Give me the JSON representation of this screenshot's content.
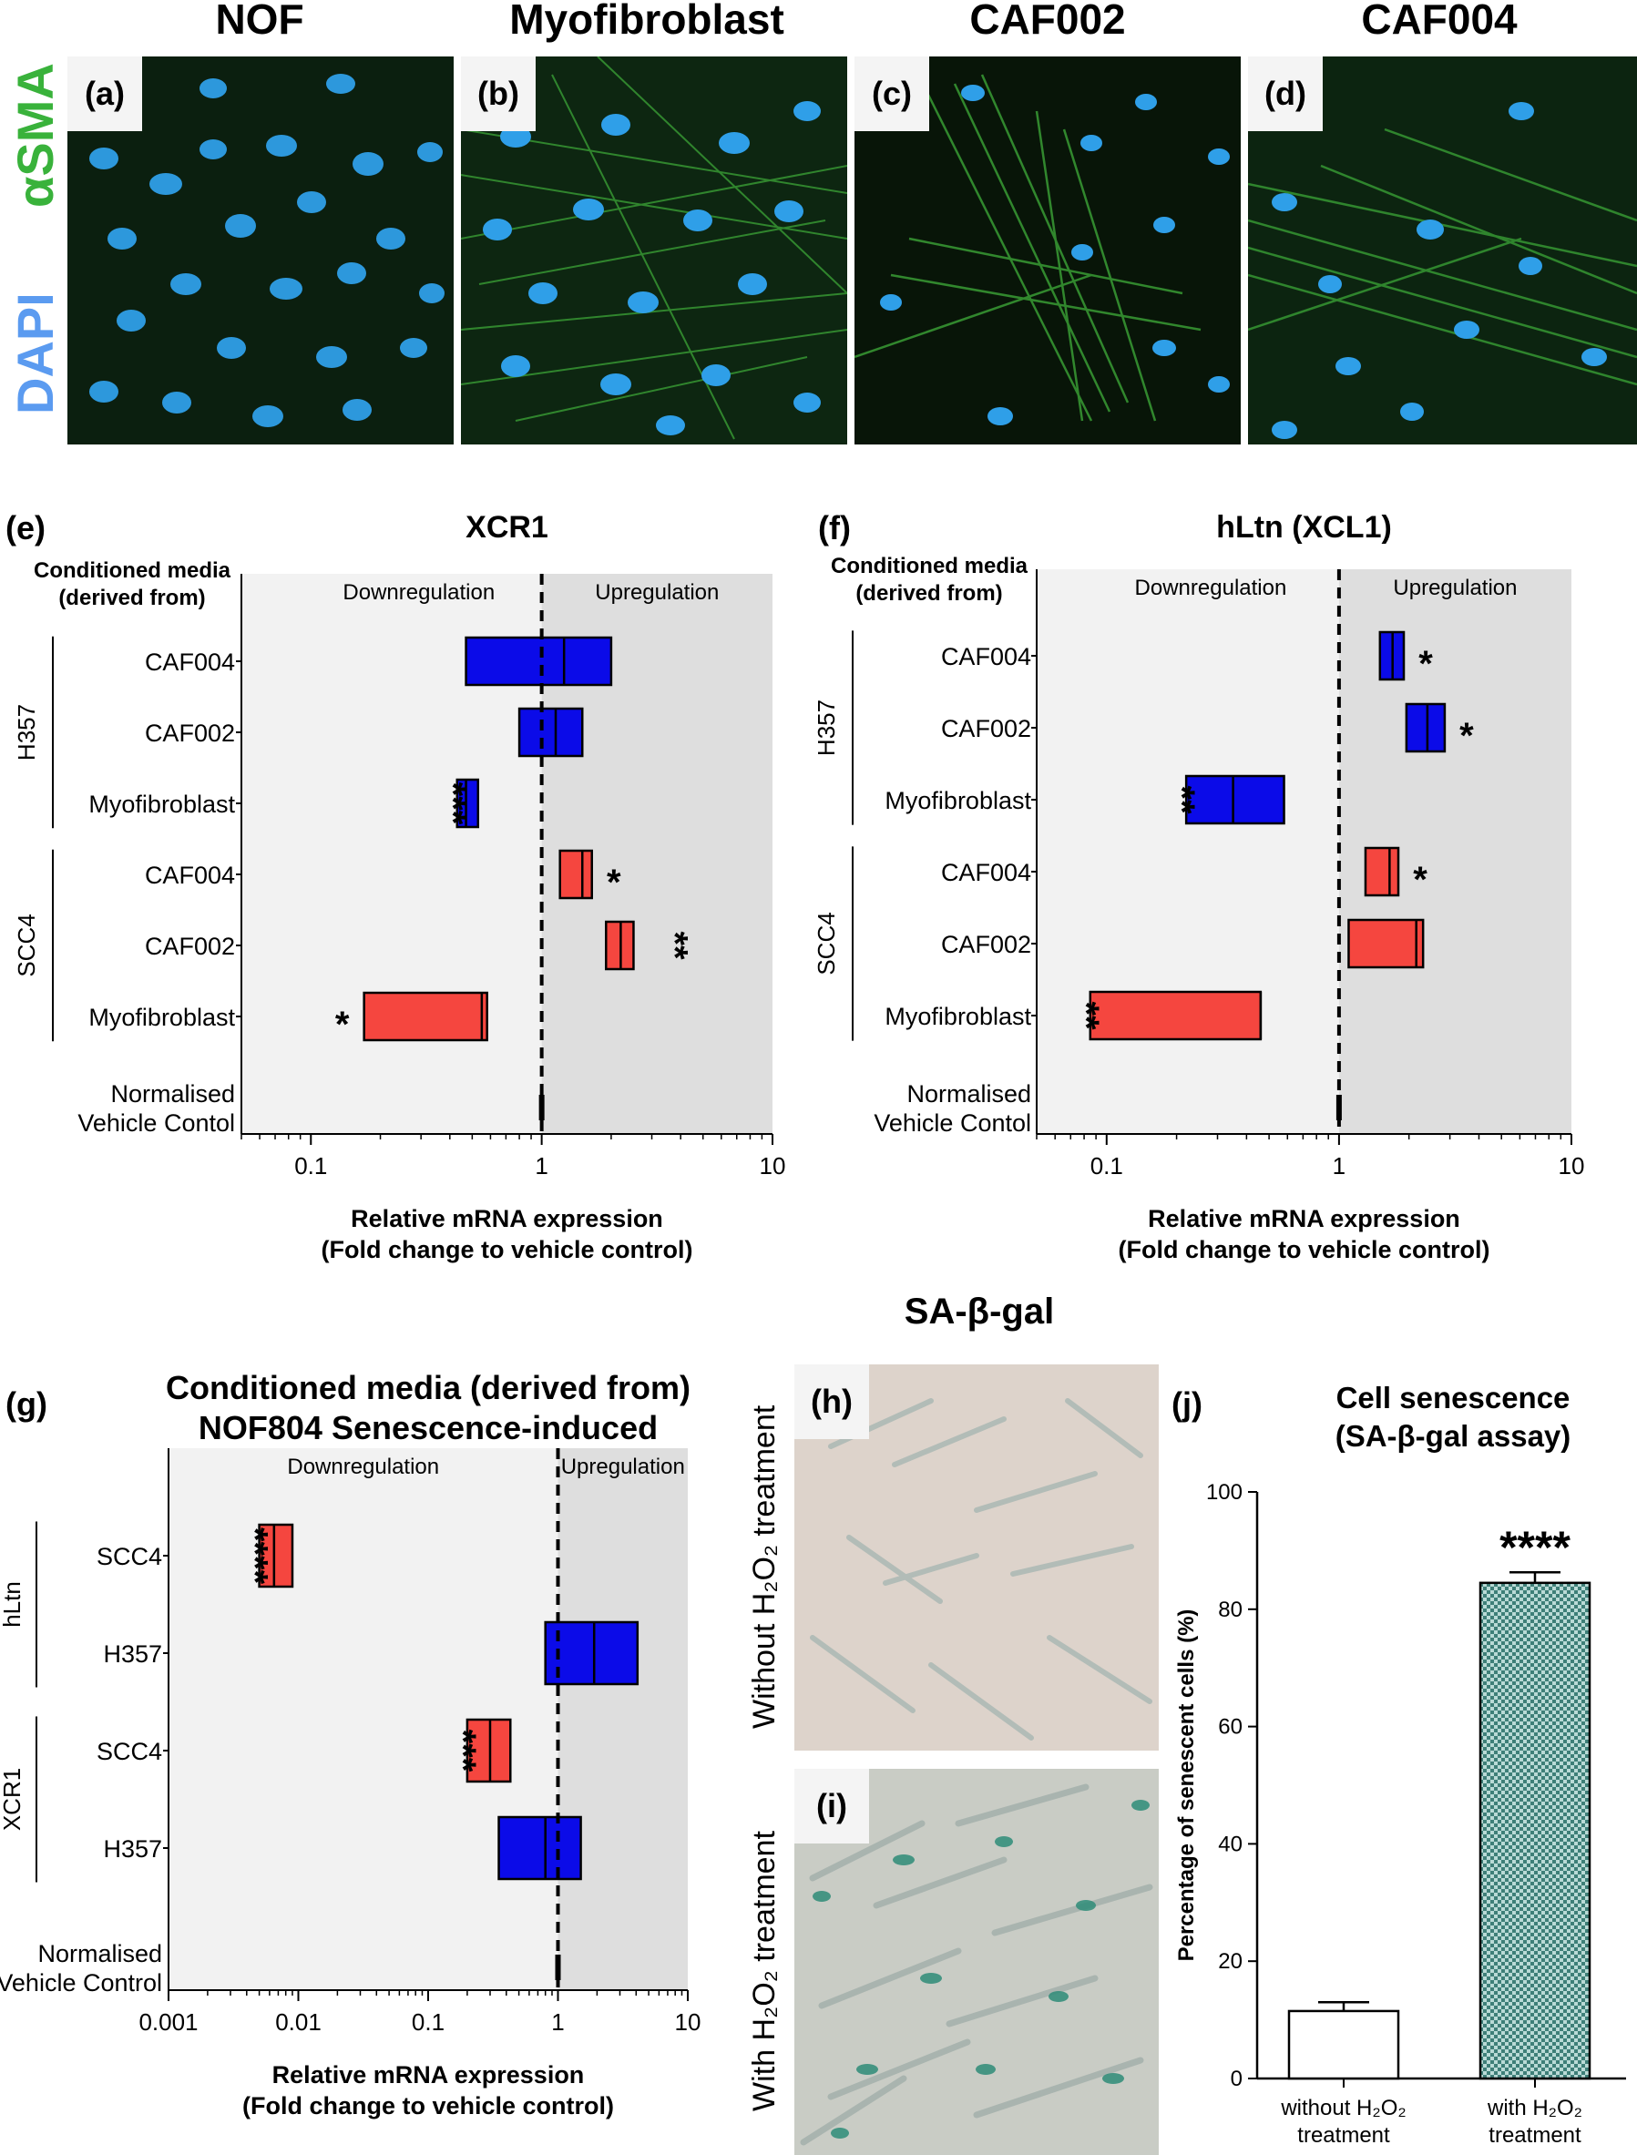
{
  "micro_panel": {
    "column_headers": [
      "NOF",
      "Myofibroblast",
      "CAF002",
      "CAF004"
    ],
    "panel_letters": [
      "(a)",
      "(b)",
      "(c)",
      "(d)"
    ],
    "stain_label_green": "αSMA",
    "stain_label_blue": "DAPI",
    "colors": {
      "actin": "#3fae3a",
      "nucleus": "#2f9fe8",
      "background": "#0c1a0e"
    }
  },
  "common": {
    "downregulation": "Downregulation",
    "upregulation": "Upregulation",
    "cm_header_line1": "Conditioned media",
    "cm_header_line2": "(derived from)",
    "xlabel_line1": "Relative mRNA expression",
    "xlabel_line2": "(Fold change to vehicle control)",
    "colors": {
      "h357": "#0b0be8",
      "scc4": "#f5463f",
      "upregulation_shade": "#dedede",
      "downregulation_shade": "#f2f2f2"
    }
  },
  "chart_data": [
    {
      "panel": "(e)",
      "type": "floating-bar",
      "title": "XCR1",
      "x_scale": "log",
      "xlim": [
        0.05,
        10
      ],
      "x_ticks": [
        "0.1",
        "1",
        "10"
      ],
      "groups": [
        {
          "name": "H357",
          "rows": [
            {
              "label": "CAF004",
              "min": 0.47,
              "mean": 1.25,
              "max": 2.0,
              "sig": ""
            },
            {
              "label": "CAF002",
              "min": 0.8,
              "mean": 1.15,
              "max": 1.5,
              "sig": ""
            },
            {
              "label": "Myofibroblast",
              "min": 0.43,
              "mean": 0.47,
              "max": 0.53,
              "sig": "***"
            }
          ]
        },
        {
          "name": "SCC4",
          "rows": [
            {
              "label": "CAF004",
              "min": 1.2,
              "mean": 1.5,
              "max": 1.65,
              "sig": "*"
            },
            {
              "label": "CAF002",
              "min": 1.9,
              "mean": 2.2,
              "max": 2.5,
              "sig": "**"
            },
            {
              "label": "Myofibroblast",
              "min": 0.17,
              "mean": 0.55,
              "max": 0.58,
              "sig": "*"
            }
          ]
        }
      ],
      "control_label_line1": "Normalised",
      "control_label_line2": "Vehicle Contol"
    },
    {
      "panel": "(f)",
      "type": "floating-bar",
      "title": "hLtn (XCL1)",
      "x_scale": "log",
      "xlim": [
        0.05,
        10
      ],
      "x_ticks": [
        "0.1",
        "1",
        "10"
      ],
      "groups": [
        {
          "name": "H357",
          "rows": [
            {
              "label": "CAF004",
              "min": 1.5,
              "mean": 1.7,
              "max": 1.9,
              "sig": "*"
            },
            {
              "label": "CAF002",
              "min": 1.95,
              "mean": 2.4,
              "max": 2.85,
              "sig": "*"
            },
            {
              "label": "Myofibroblast",
              "min": 0.22,
              "mean": 0.35,
              "max": 0.58,
              "sig": "**"
            }
          ]
        },
        {
          "name": "SCC4",
          "rows": [
            {
              "label": "CAF004",
              "min": 1.3,
              "mean": 1.65,
              "max": 1.8,
              "sig": "*"
            },
            {
              "label": "CAF002",
              "min": 1.1,
              "mean": 2.15,
              "max": 2.3,
              "sig": ""
            },
            {
              "label": "Myofibroblast",
              "min": 0.085,
              "mean": 0.46,
              "max": 0.46,
              "sig": "**"
            }
          ]
        }
      ],
      "control_label_line1": "Normalised",
      "control_label_line2": "Vehicle Contol"
    },
    {
      "panel": "(g)",
      "type": "floating-bar",
      "title_line1": "Conditioned media (derived from)",
      "title_line2": "NOF804 Senescence-induced",
      "x_scale": "log",
      "xlim": [
        0.001,
        10
      ],
      "x_ticks": [
        "0.001",
        "0.01",
        "0.1",
        "1",
        "10"
      ],
      "groups": [
        {
          "name": "hLtn",
          "rows": [
            {
              "label": "SCC4",
              "color": "scc4",
              "min": 0.005,
              "mean": 0.0065,
              "max": 0.009,
              "sig": "****"
            },
            {
              "label": "H357",
              "color": "h357",
              "min": 0.8,
              "mean": 1.9,
              "max": 4.1,
              "sig": ""
            }
          ]
        },
        {
          "name": "XCR1",
          "rows": [
            {
              "label": "SCC4",
              "color": "scc4",
              "min": 0.2,
              "mean": 0.3,
              "max": 0.43,
              "sig": "***"
            },
            {
              "label": "H357",
              "color": "h357",
              "min": 0.35,
              "mean": 0.8,
              "max": 1.5,
              "sig": ""
            }
          ]
        }
      ],
      "control_label_line1": "Normalised",
      "control_label_line2": "Vehicle Control"
    },
    {
      "panel": "(j)",
      "type": "bar",
      "title_line1": "Cell senescence",
      "title_line2": "(SA-β-gal assay)",
      "ylabel": "Percentage of senescent cells (%)",
      "ylim": [
        0,
        100
      ],
      "y_ticks": [
        0,
        20,
        40,
        60,
        80,
        100
      ],
      "categories": [
        {
          "line1": "without H₂O₂",
          "line2": "treatment"
        },
        {
          "line1": "with H₂O₂",
          "line2": "treatment"
        }
      ],
      "values": [
        11.5,
        84.5
      ],
      "errors": [
        1.5,
        1.8
      ],
      "sig": [
        "",
        "****"
      ]
    }
  ],
  "sa_gal": {
    "title": "SA-β-gal",
    "panel_h": "(h)",
    "panel_i": "(i)",
    "label_without": "Without H₂O₂ treatment",
    "label_with": "With H₂O₂ treatment",
    "colors": {
      "field": "#ddd3cb",
      "cell": "#b8c3bd",
      "stain": "#2e8c78"
    }
  }
}
